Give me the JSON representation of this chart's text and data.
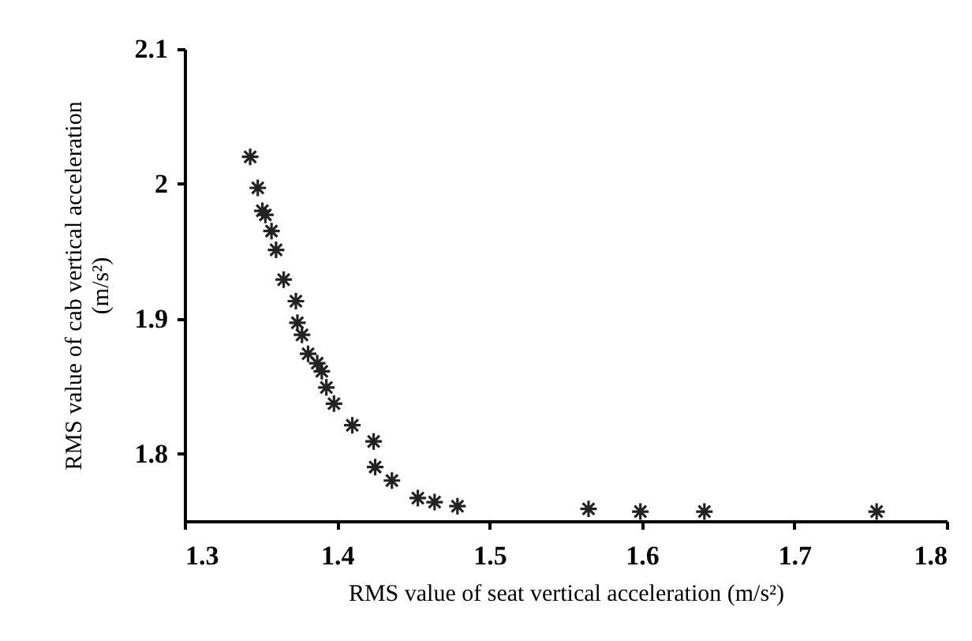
{
  "chart_data": {
    "type": "scatter",
    "xlabel": "RMS value of seat vertical acceleration (m/s²)",
    "ylabel": "RMS value of cab vertical acceleration\n(m/s²)",
    "x": [
      1.343,
      1.348,
      1.351,
      1.353,
      1.357,
      1.36,
      1.365,
      1.373,
      1.374,
      1.377,
      1.381,
      1.387,
      1.39,
      1.393,
      1.398,
      1.41,
      1.424,
      1.425,
      1.436,
      1.453,
      1.464,
      1.479,
      1.565,
      1.599,
      1.641,
      1.754
    ],
    "series": [
      {
        "color": "#222222",
        "values": [
          2.02,
          1.997,
          1.98,
          1.977,
          1.965,
          1.951,
          1.929,
          1.913,
          1.897,
          1.888,
          1.874,
          1.867,
          1.861,
          1.849,
          1.837,
          1.821,
          1.809,
          1.79,
          1.78,
          1.767,
          1.764,
          1.761,
          1.759,
          1.757,
          1.757,
          1.757
        ]
      }
    ],
    "xlim": [
      1.3,
      1.8
    ],
    "xticks": [
      1.3,
      1.4,
      1.5,
      1.6,
      1.7,
      1.8
    ],
    "ylim": [
      1.75,
      2.1
    ],
    "yticks": [
      1.8,
      1.9,
      {
        "value": 2,
        "label": "2"
      },
      2.1
    ],
    "grid": false,
    "marker": "cross"
  }
}
